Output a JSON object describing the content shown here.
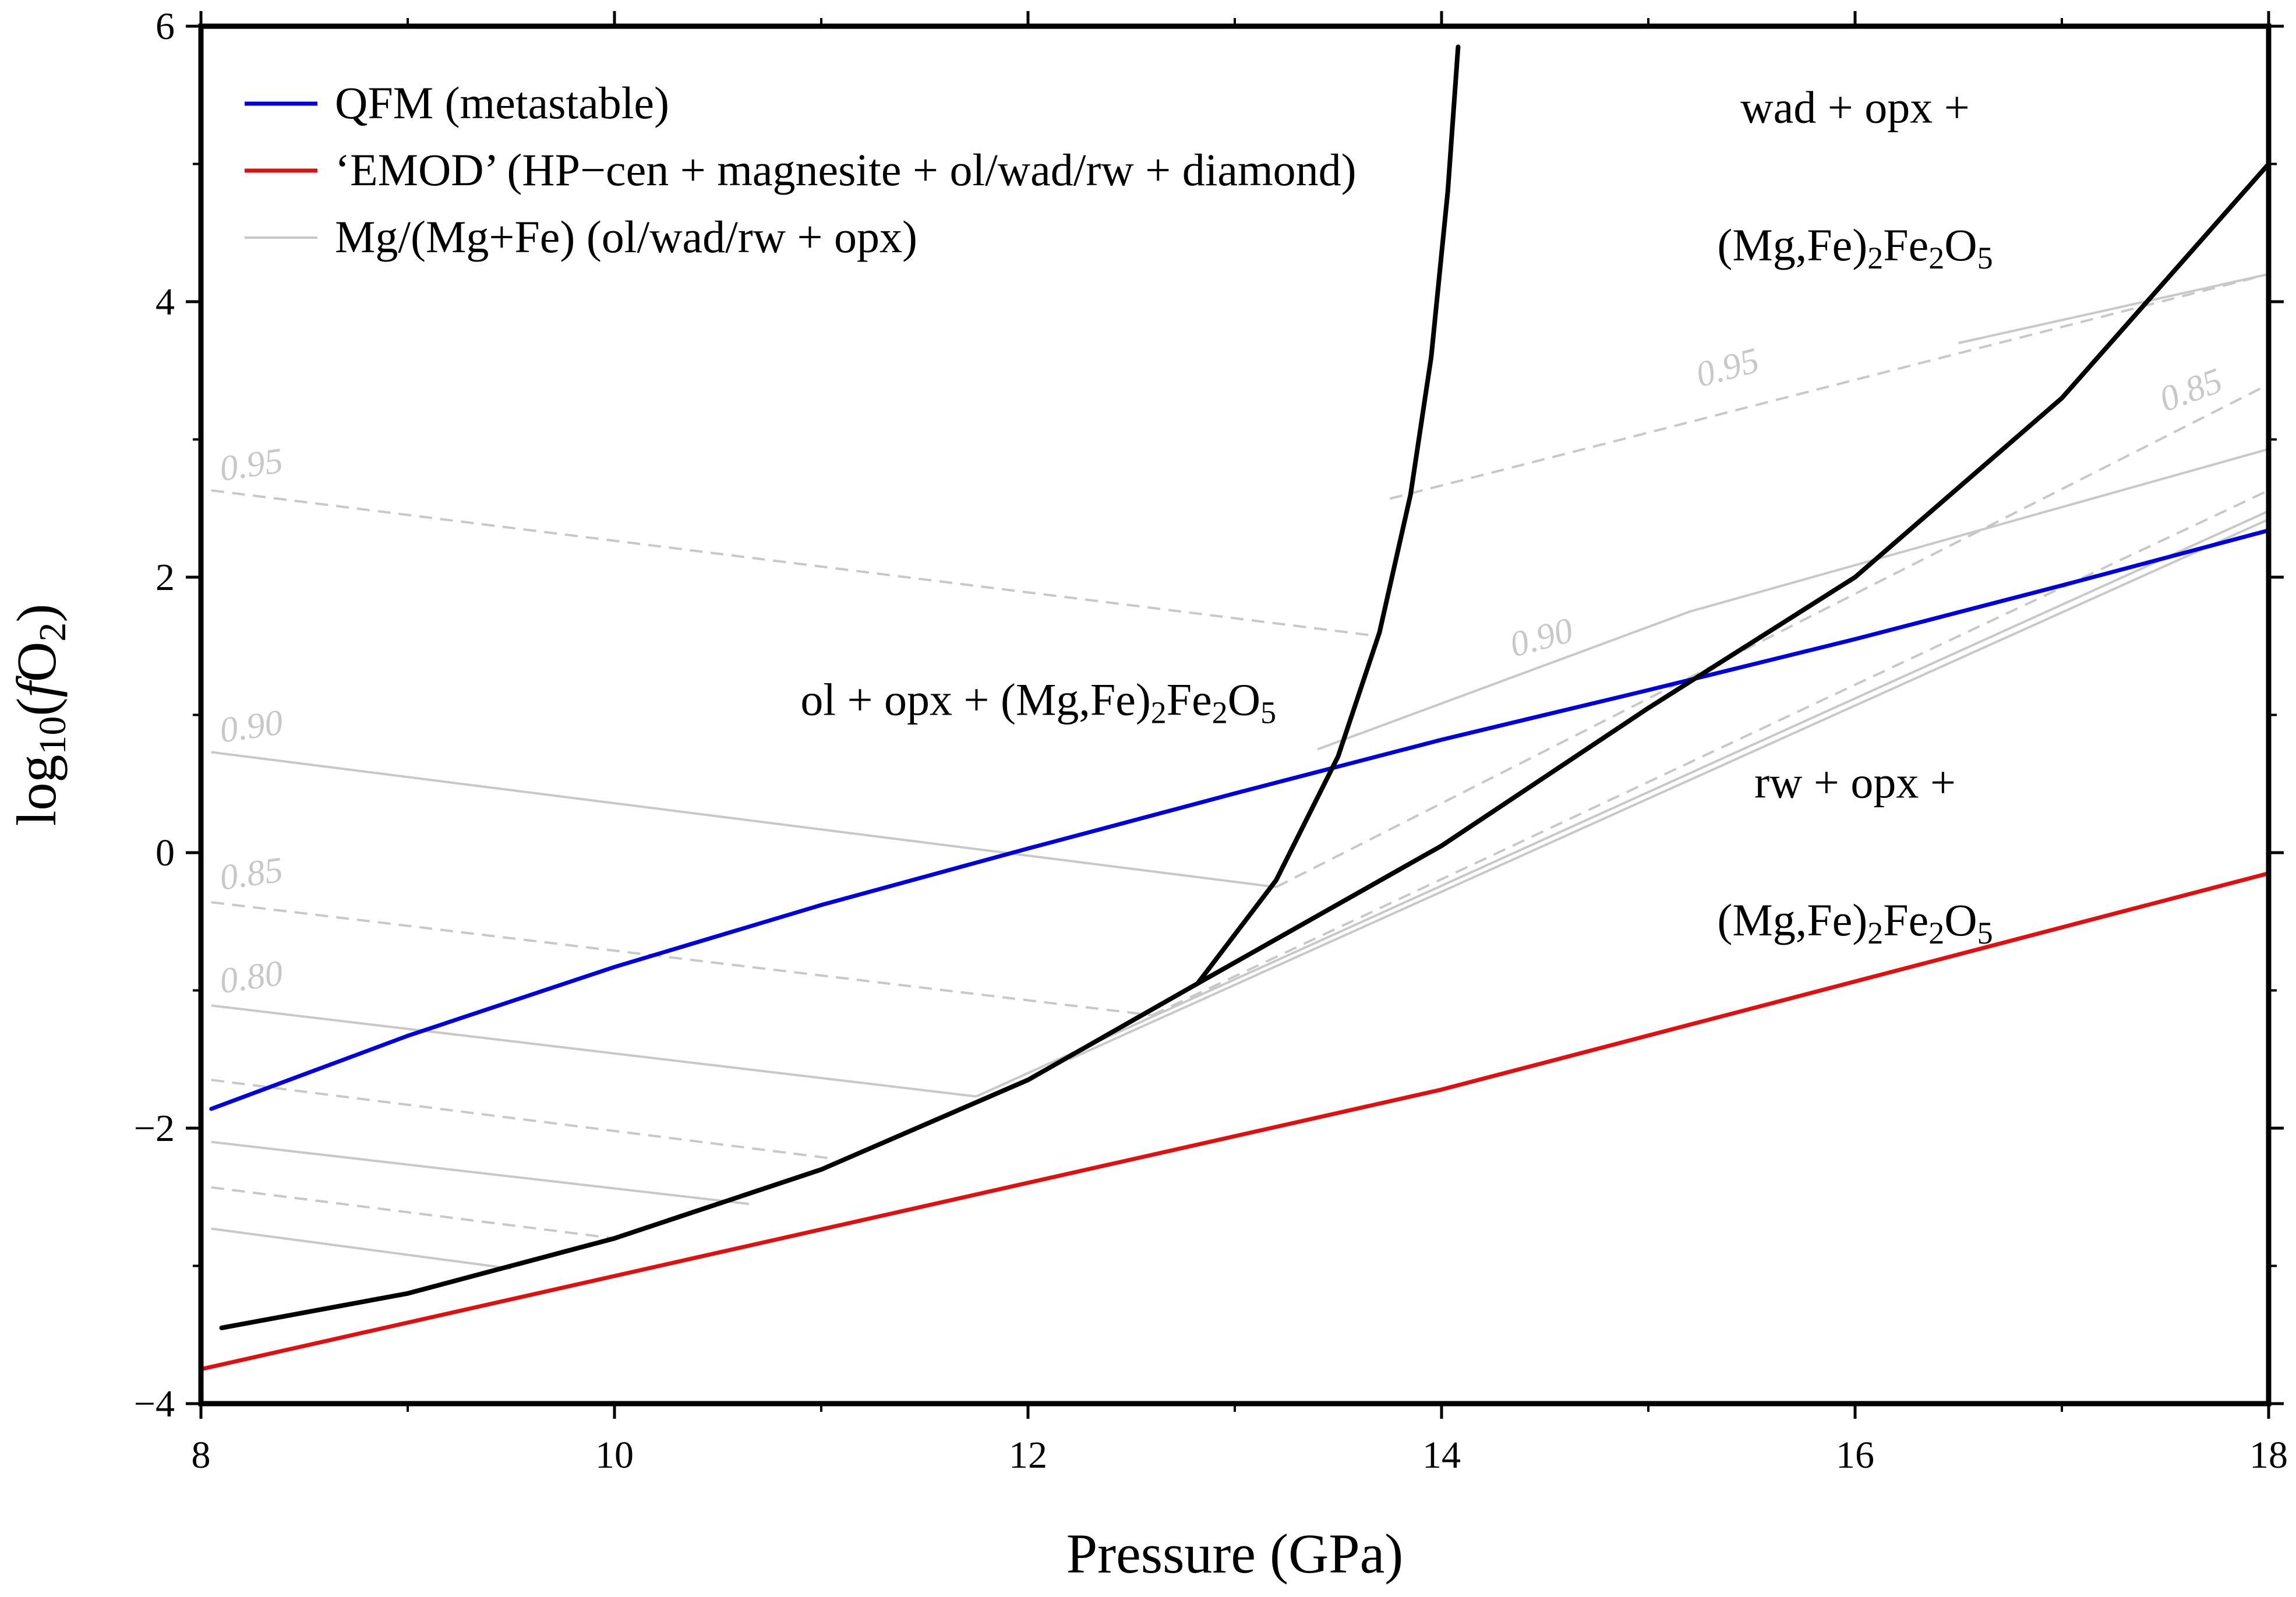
{
  "chart_data": {
    "type": "line",
    "title": "",
    "xlabel": "Pressure (GPa)",
    "ylabel_parts": {
      "pre": "log",
      "sub": "10",
      "mid": "(",
      "f": "f",
      "o": "O",
      "osub": "2",
      "post": ")"
    },
    "xlim": [
      8,
      18
    ],
    "ylim": [
      -4,
      6
    ],
    "x_ticks": [
      8,
      10,
      12,
      14,
      16,
      18
    ],
    "y_ticks": [
      -4,
      -2,
      0,
      2,
      4,
      6
    ],
    "y_tick_labels": [
      "−4",
      "−2",
      "0",
      "2",
      "4",
      "6"
    ],
    "x_minor_ticks": [
      9,
      11,
      13,
      15,
      17
    ],
    "y_minor_ticks": [
      -3,
      -1,
      1,
      3,
      5
    ],
    "colors": {
      "qfm": "#0000dd",
      "emod": "#e01010",
      "contour": "#c8c8c8",
      "boundary": "#000000",
      "axis": "#000000"
    },
    "legend": [
      {
        "label": "QFM (metastable)",
        "color": "#0000dd",
        "style": "solid"
      },
      {
        "label": "‘EMOD’ (HP−cen + magnesite + ol/wad/rw + diamond)",
        "color": "#e01010",
        "style": "solid"
      },
      {
        "label": "Mg/(Mg+Fe) (ol/wad/rw + opx)",
        "color": "#c8c8c8",
        "style": "solid"
      }
    ],
    "series": [
      {
        "name": "QFM (metastable)",
        "color": "#0000dd",
        "x": [
          8.05,
          9,
          10,
          11,
          12,
          13,
          14,
          15,
          16,
          17,
          18
        ],
        "y": [
          -1.86,
          -1.33,
          -0.83,
          -0.38,
          0.03,
          0.43,
          0.82,
          1.18,
          1.55,
          1.94,
          2.34
        ]
      },
      {
        "name": "EMOD",
        "color": "#e01010",
        "x": [
          8.0,
          14.0,
          18.0
        ],
        "y": [
          -3.75,
          -1.72,
          -0.15
        ]
      },
      {
        "name": "ol/wad boundary",
        "color": "#000000",
        "x": [
          12.82,
          13.2,
          13.5,
          13.7,
          13.85,
          13.95,
          14.03,
          14.08
        ],
        "y": [
          -0.95,
          -0.2,
          0.7,
          1.6,
          2.6,
          3.6,
          4.8,
          5.85
        ]
      },
      {
        "name": "ol/rw boundary",
        "color": "#000000",
        "x": [
          8.1,
          9,
          10,
          11,
          12,
          12.82
        ],
        "y": [
          -3.45,
          -3.2,
          -2.8,
          -2.3,
          -1.65,
          -0.95
        ]
      },
      {
        "name": "rw/wad boundary",
        "color": "#000000",
        "x": [
          12.82,
          14,
          15,
          16,
          17,
          18
        ],
        "y": [
          -0.95,
          0.05,
          1.05,
          2.0,
          3.3,
          5.0
        ]
      }
    ],
    "contours": [
      {
        "label": "0.95",
        "style": "dashed",
        "x": [
          8.05,
          13.65
        ],
        "y": [
          2.63,
          1.58
        ]
      },
      {
        "label": "0.90",
        "style": "solid",
        "x": [
          8.05,
          13.2
        ],
        "y": [
          0.73,
          -0.25
        ]
      },
      {
        "label": "0.85",
        "style": "dashed",
        "x": [
          8.05,
          12.6
        ],
        "y": [
          -0.36,
          -1.18
        ]
      },
      {
        "label": "0.80",
        "style": "solid",
        "x": [
          8.05,
          11.75
        ],
        "y": [
          -1.11,
          -1.77
        ]
      },
      {
        "label": "",
        "style": "dashed",
        "x": [
          8.05,
          11.05
        ],
        "y": [
          -1.65,
          -2.22
        ]
      },
      {
        "label": "",
        "style": "solid",
        "x": [
          8.05,
          10.65
        ],
        "y": [
          -2.1,
          -2.55
        ]
      },
      {
        "label": "",
        "style": "dashed",
        "x": [
          8.05,
          10.0
        ],
        "y": [
          -2.43,
          -2.8
        ]
      },
      {
        "label": "",
        "style": "solid",
        "x": [
          8.05,
          9.5
        ],
        "y": [
          -2.73,
          -3.02
        ]
      },
      {
        "label": "0.95",
        "style": "dashed",
        "x": [
          13.75,
          18.0
        ],
        "y": [
          2.57,
          4.2
        ]
      },
      {
        "label": "",
        "style": "solid",
        "x": [
          16.5,
          18.0
        ],
        "y": [
          3.7,
          4.2
        ]
      },
      {
        "label": "0.90",
        "style": "solid",
        "x": [
          13.4,
          15.2
        ],
        "y": [
          0.75,
          1.75
        ]
      },
      {
        "label": "",
        "style": "solid",
        "x": [
          15.2,
          18.0
        ],
        "y": [
          1.75,
          2.93
        ]
      },
      {
        "label": "0.85",
        "style": "dashed",
        "x": [
          13.2,
          18.0
        ],
        "y": [
          -0.25,
          3.4
        ]
      },
      {
        "label": "",
        "style": "dashed",
        "x": [
          12.6,
          18.0
        ],
        "y": [
          -1.18,
          2.63
        ]
      },
      {
        "label": "",
        "style": "solid",
        "x": [
          11.75,
          18.0
        ],
        "y": [
          -1.77,
          2.48
        ]
      },
      {
        "label": "",
        "style": "solid",
        "x": [
          12.2,
          18.0
        ],
        "y": [
          -1.5,
          2.42
        ]
      }
    ],
    "contour_labels": [
      {
        "text": "0.95",
        "x": 8.1,
        "y": 2.7,
        "angle": -8
      },
      {
        "text": "0.90",
        "x": 8.1,
        "y": 0.8,
        "angle": -8
      },
      {
        "text": "0.85",
        "x": 8.1,
        "y": -0.27,
        "angle": -8
      },
      {
        "text": "0.80",
        "x": 8.1,
        "y": -1.02,
        "angle": -8
      },
      {
        "text": "0.95",
        "x": 15.25,
        "y": 3.38,
        "angle": -15
      },
      {
        "text": "0.90",
        "x": 14.35,
        "y": 1.42,
        "angle": -15
      },
      {
        "text": "0.85",
        "x": 17.5,
        "y": 3.2,
        "angle": -20
      }
    ],
    "region_labels": [
      {
        "parts": [
          "ol + opx + (Mg,Fe)",
          "2",
          "Fe",
          "2",
          "O",
          "5"
        ],
        "x": 12.05,
        "y": 1.0,
        "anchor": "middle"
      },
      {
        "parts": [
          "wad + opx +"
        ],
        "x": 16.0,
        "y": 5.3,
        "anchor": "middle"
      },
      {
        "parts": [
          "(Mg,Fe)",
          "2",
          "Fe",
          "2",
          "O",
          "5"
        ],
        "x": 16.0,
        "y": 4.3,
        "anchor": "middle"
      },
      {
        "parts": [
          "rw + opx +"
        ],
        "x": 16.0,
        "y": 0.4,
        "anchor": "middle"
      },
      {
        "parts": [
          "(Mg,Fe)",
          "2",
          "Fe",
          "2",
          "O",
          "5"
        ],
        "x": 16.0,
        "y": -0.6,
        "anchor": "middle"
      }
    ]
  }
}
